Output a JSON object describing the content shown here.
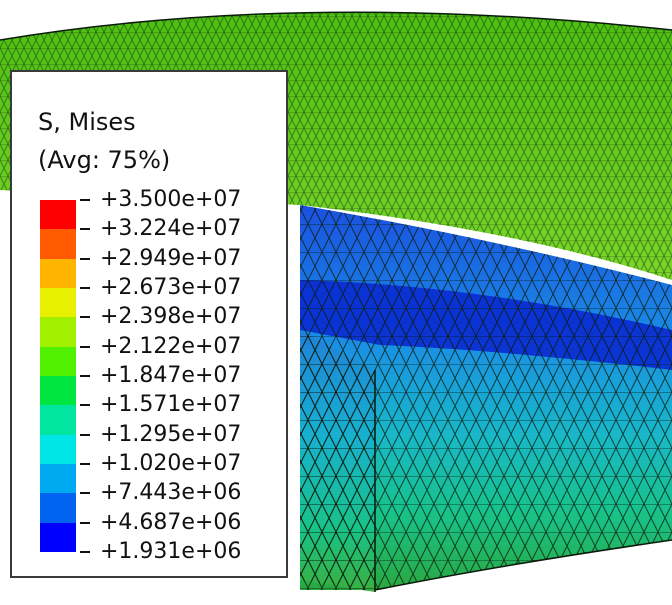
{
  "legend": {
    "title": "S, Mises",
    "subtitle": "(Avg: 75%)",
    "values": [
      "+3.500e+07",
      "+3.224e+07",
      "+2.949e+07",
      "+2.673e+07",
      "+2.398e+07",
      "+2.122e+07",
      "+1.847e+07",
      "+1.571e+07",
      "+1.295e+07",
      "+1.020e+07",
      "+7.443e+06",
      "+4.687e+06",
      "+1.931e+06"
    ],
    "colors": [
      "#ff0000",
      "#ff5a00",
      "#ffb400",
      "#e6f000",
      "#a0f000",
      "#50f000",
      "#00e640",
      "#00e6a0",
      "#00e6e6",
      "#00aaf0",
      "#0064f0",
      "#0000ff"
    ]
  },
  "mesh_colors": {
    "top_surface": "#5cc81a",
    "hot_spot": "#d8b020",
    "dark_blue": "#0a2ad0",
    "mid_blue": "#1a70e0",
    "cyan": "#18b0c8",
    "teal": "#18c090",
    "green": "#30c040"
  }
}
